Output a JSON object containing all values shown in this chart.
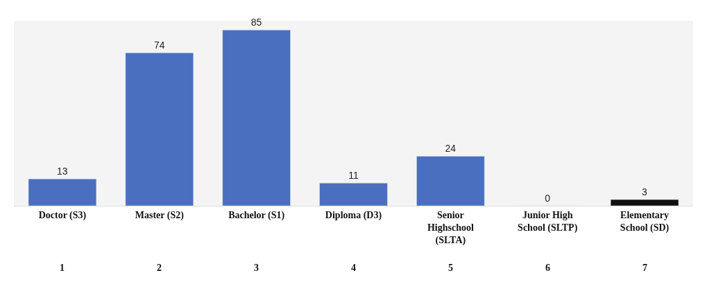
{
  "chart_data": {
    "type": "bar",
    "categories": [
      "Doctor (S3)",
      "Master (S2)",
      "Bachelor (S1)",
      "Diploma (D3)",
      "Senior\nHighschool\n(SLTA)",
      "Junior High\nSchool (SLTP)",
      "Elementary\nSchool (SD)"
    ],
    "values": [
      13,
      74,
      85,
      11,
      24,
      0,
      3
    ],
    "colors": [
      "#4a6fbf",
      "#4a6fbf",
      "#4a6fbf",
      "#4a6fbf",
      "#4a6fbf",
      null,
      "#111111"
    ],
    "annotations": [
      "1",
      "2",
      "3",
      "4",
      "5",
      "6",
      "7"
    ],
    "data_labels": true,
    "grid": false,
    "legend": false
  }
}
